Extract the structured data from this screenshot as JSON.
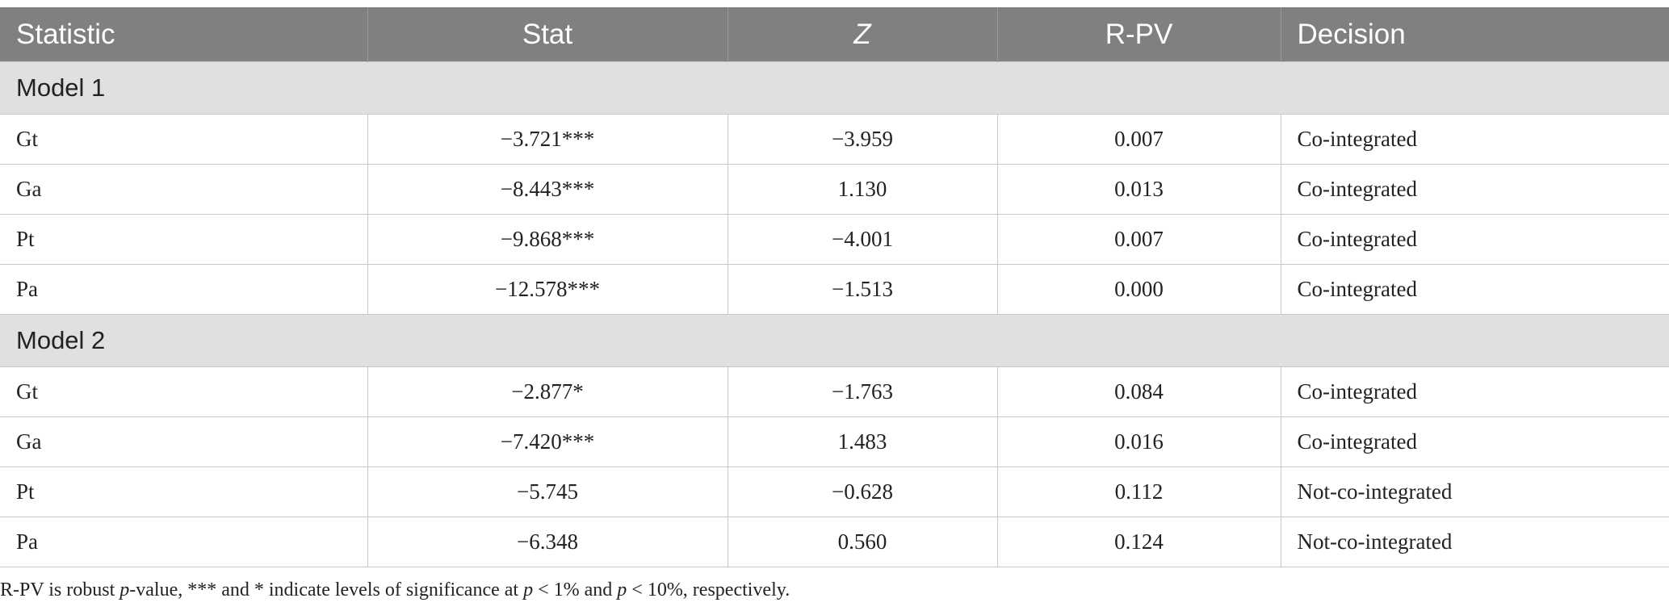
{
  "table": {
    "headers": [
      "Statistic",
      "Stat",
      "Z",
      "R-PV",
      "Decision"
    ],
    "groups": [
      {
        "label": "Model 1",
        "rows": [
          [
            "Gt",
            "−3.721***",
            "−3.959",
            "0.007",
            "Co-integrated"
          ],
          [
            "Ga",
            "−8.443***",
            "1.130",
            "0.013",
            "Co-integrated"
          ],
          [
            "Pt",
            "−9.868***",
            "−4.001",
            "0.007",
            "Co-integrated"
          ],
          [
            "Pa",
            "−12.578***",
            "−1.513",
            "0.000",
            "Co-integrated"
          ]
        ]
      },
      {
        "label": "Model 2",
        "rows": [
          [
            "Gt",
            "−2.877*",
            "−1.763",
            "0.084",
            "Co-integrated"
          ],
          [
            "Ga",
            "−7.420***",
            "1.483",
            "0.016",
            "Co-integrated"
          ],
          [
            "Pt",
            "−5.745",
            "−0.628",
            "0.112",
            "Not-co-integrated"
          ],
          [
            "Pa",
            "−6.348",
            "0.560",
            "0.124",
            "Not-co-integrated"
          ]
        ]
      }
    ]
  },
  "footnote": {
    "part1": "R-PV is robust ",
    "p1": "p",
    "part2": "-value, *** and * indicate levels of significance at ",
    "p2": "p",
    "part3": " < 1% and ",
    "p3": "p",
    "part4": " < 10%, respectively."
  }
}
